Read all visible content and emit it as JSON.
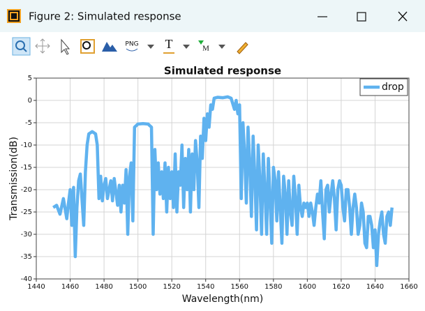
{
  "window": {
    "title": "Figure 2: Simulated response",
    "toolbar": [
      "PNG",
      "T",
      "M"
    ]
  },
  "chart_data": {
    "type": "line",
    "title": "Simulated response",
    "x_label": "Wavelength(nm)",
    "y_label": "Transmission(dB)",
    "x": [
      1450,
      1452,
      1454,
      1456,
      1458,
      1459,
      1460,
      1461,
      1462,
      1463,
      1464,
      1465,
      1466,
      1468,
      1469,
      1470,
      1471,
      1473,
      1475,
      1476,
      1477,
      1478,
      1479,
      1480,
      1481,
      1482,
      1484,
      1485,
      1486,
      1488,
      1489,
      1490,
      1491,
      1492,
      1493,
      1494,
      1495,
      1496,
      1497,
      1498,
      1500,
      1503,
      1506,
      1508,
      1509,
      1510,
      1511,
      1512,
      1513,
      1514,
      1515,
      1516,
      1517,
      1518,
      1519,
      1520,
      1521,
      1522,
      1523,
      1524,
      1525,
      1526,
      1527,
      1528,
      1529,
      1530,
      1531,
      1532,
      1533,
      1534,
      1535,
      1536,
      1537,
      1538,
      1539,
      1540,
      1541,
      1542,
      1543,
      1544,
      1545,
      1547,
      1550,
      1553,
      1555,
      1557,
      1558,
      1559,
      1560,
      1561,
      1562,
      1563,
      1564,
      1565,
      1566,
      1567,
      1568,
      1569,
      1570,
      1571,
      1572,
      1573,
      1574,
      1575,
      1576,
      1577,
      1578,
      1579,
      1580,
      1581,
      1582,
      1583,
      1584,
      1585,
      1586,
      1587,
      1588,
      1589,
      1590,
      1591,
      1592,
      1593,
      1594,
      1595,
      1596,
      1597,
      1598,
      1599,
      1600,
      1601,
      1602,
      1603,
      1604,
      1605,
      1606,
      1607,
      1608,
      1609,
      1610,
      1611,
      1612,
      1613,
      1614,
      1615,
      1616,
      1617,
      1618,
      1619,
      1620,
      1621,
      1622,
      1623,
      1624,
      1625,
      1626,
      1627,
      1628,
      1629,
      1630,
      1631,
      1632,
      1633,
      1634,
      1635,
      1636,
      1637,
      1638,
      1639,
      1640,
      1641,
      1642,
      1643,
      1644,
      1645,
      1646,
      1647,
      1648,
      1649,
      1650
    ],
    "series": [
      {
        "name": "drop",
        "color": "#5fb2ef",
        "values": [
          -24,
          -23.5,
          -25.5,
          -22,
          -26.5,
          -23,
          -20,
          -28,
          -19.5,
          -35,
          -24,
          -18,
          -16.5,
          -28,
          -16,
          -10,
          -7.5,
          -7,
          -7.5,
          -10,
          -22,
          -17,
          -22.5,
          -19,
          -17.5,
          -22,
          -18,
          -22.5,
          -17.5,
          -23.5,
          -19,
          -25,
          -19,
          -23,
          -15.5,
          -30,
          -17,
          -14,
          -27,
          -6,
          -5.3,
          -5.2,
          -5.3,
          -6,
          -30,
          -11,
          -20,
          -14,
          -21,
          -16,
          -22,
          -14,
          -25,
          -15,
          -22,
          -16,
          -24,
          -12,
          -25,
          -16,
          -19,
          -10,
          -24,
          -13,
          -20,
          -11,
          -25,
          -12,
          -20,
          -9,
          -14,
          -24,
          -8,
          -13,
          -4,
          -9,
          -3,
          -6,
          -1,
          -2,
          0.5,
          0.7,
          0.6,
          0.8,
          0.5,
          -2,
          0,
          -3,
          -1,
          -22,
          -5,
          -12,
          -23,
          -6,
          -14,
          -26,
          -8,
          -17,
          -29,
          -10,
          -18,
          -30,
          -12,
          -20,
          -30,
          -13,
          -22,
          -32,
          -15,
          -18,
          -27,
          -16,
          -24,
          -32,
          -17,
          -21,
          -30,
          -18,
          -25,
          -28,
          -17,
          -22,
          -30,
          -19,
          -24,
          -26,
          -23,
          -24,
          -23,
          -26,
          -23,
          -25,
          -28,
          -24,
          -21,
          -23,
          -18,
          -25,
          -31,
          -20,
          -19,
          -25,
          -21,
          -18,
          -22,
          -29,
          -20,
          -18,
          -19,
          -24,
          -27,
          -20,
          -20,
          -24,
          -30,
          -24,
          -21,
          -24,
          -30,
          -28,
          -23,
          -25,
          -32,
          -33,
          -26,
          -26,
          -28,
          -33,
          -29,
          -37,
          -30,
          -27,
          -25,
          -30,
          -32,
          -26,
          -25,
          -28,
          -24
        ]
      }
    ],
    "xlim": [
      1440,
      1660
    ],
    "ylim": [
      -40,
      5
    ],
    "xticks": [
      1440,
      1460,
      1480,
      1500,
      1520,
      1540,
      1560,
      1580,
      1600,
      1620,
      1640,
      1660
    ],
    "yticks": [
      -40,
      -35,
      -30,
      -25,
      -20,
      -15,
      -10,
      -5,
      0,
      5
    ],
    "grid": true,
    "legend": "upper right"
  }
}
